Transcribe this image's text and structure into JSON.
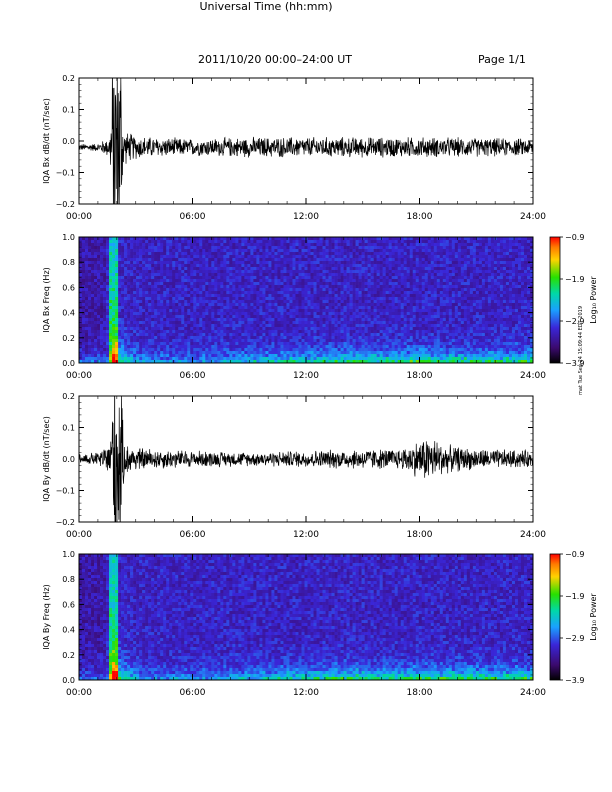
{
  "header": {
    "title": "2011/10/20  00:00–24:00 UT",
    "page": "Page 1/1"
  },
  "x_axis_title": "Universal Time (hh:mm)",
  "side_note": "mat Tue Sep 24 15:09:44 EDT 2019",
  "colors": {
    "trace": "#000000",
    "spectrogram_low": "#000000",
    "spectrogram_mid": "#5a1aa8",
    "spectrogram_high": "#ff0000"
  },
  "chart_data": [
    {
      "type": "line",
      "ylabel": "IQA Bx dB/dt (nT/sec)",
      "ylim": [
        -0.2,
        0.2
      ],
      "yticks": [
        "0.2",
        "0.1",
        "0.0",
        "−0.1",
        "−0.2"
      ],
      "xlim": [
        0,
        24
      ],
      "xticks": [
        "00:00",
        "06:00",
        "12:00",
        "18:00",
        "24:00"
      ],
      "baseline": -0.02,
      "noise_amplitude": 0.025,
      "series": [
        {
          "values_hours": [
            0,
            1,
            1.6,
            1.8,
            2.0,
            2.2,
            2.4,
            3,
            4,
            6,
            9,
            12,
            15,
            18,
            21,
            24
          ],
          "envelope": [
            0.01,
            0.012,
            0.03,
            0.2,
            0.2,
            0.2,
            0.05,
            0.035,
            0.03,
            0.025,
            0.03,
            0.03,
            0.03,
            0.03,
            0.028,
            0.025
          ]
        }
      ]
    },
    {
      "type": "heatmap",
      "ylabel": "IQA Bx Freq (Hz)",
      "ylim": [
        0,
        1.0
      ],
      "yticks": [
        "1.0",
        "0.8",
        "0.6",
        "0.4",
        "0.2",
        "0.0"
      ],
      "xlim": [
        0,
        24
      ],
      "xticks": [
        "00:00",
        "06:00",
        "12:00",
        "18:00",
        "24:00"
      ],
      "colorbar": {
        "label": "Log₁₀ Power",
        "ticks": [
          "−0.9",
          "−1.9",
          "−2.9",
          "−3.9"
        ],
        "range": [
          -3.9,
          -0.9
        ]
      },
      "event_hour": 1.8
    },
    {
      "type": "line",
      "ylabel": "IQA By dB/dt (nT/sec)",
      "ylim": [
        -0.2,
        0.2
      ],
      "yticks": [
        "0.2",
        "0.1",
        "0.0",
        "−0.1",
        "−0.2"
      ],
      "xlim": [
        0,
        24
      ],
      "xticks": [
        "00:00",
        "06:00",
        "12:00",
        "18:00",
        "24:00"
      ],
      "baseline": 0.0,
      "noise_amplitude": 0.02,
      "series": [
        {
          "values_hours": [
            0,
            1,
            1.6,
            1.8,
            2.0,
            2.2,
            2.4,
            3,
            4,
            6,
            9,
            12,
            15,
            17,
            18.5,
            19.5,
            21,
            24
          ],
          "envelope": [
            0.015,
            0.02,
            0.05,
            0.2,
            0.2,
            0.2,
            0.05,
            0.035,
            0.03,
            0.025,
            0.02,
            0.025,
            0.03,
            0.03,
            0.07,
            0.04,
            0.03,
            0.025
          ]
        }
      ]
    },
    {
      "type": "heatmap",
      "ylabel": "IQA By Freq (Hz)",
      "ylim": [
        0,
        1.0
      ],
      "yticks": [
        "1.0",
        "0.8",
        "0.6",
        "0.4",
        "0.2",
        "0.0"
      ],
      "xlim": [
        0,
        24
      ],
      "xticks": [
        "00:00",
        "06:00",
        "12:00",
        "18:00",
        "24:00"
      ],
      "colorbar": {
        "label": "Log₁₀ Power",
        "ticks": [
          "−0.9",
          "−1.9",
          "−2.9",
          "−3.9"
        ],
        "range": [
          -3.9,
          -0.9
        ]
      },
      "event_hour": 1.8
    }
  ]
}
